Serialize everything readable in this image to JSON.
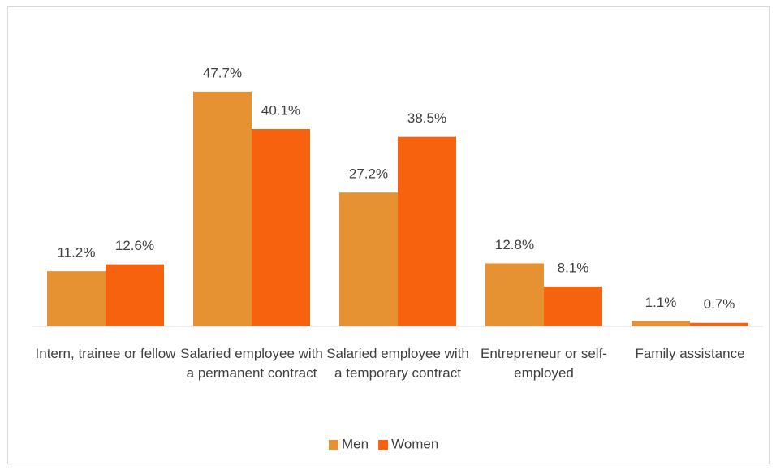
{
  "chart_data": {
    "type": "bar",
    "categories": [
      "Intern, trainee or fellow",
      "Salaried employee with a permanent contract",
      "Salaried employee with a temporary contract",
      "Entrepreneur or self-employed",
      "Family assistance"
    ],
    "series": [
      {
        "name": "Men",
        "color": "#e69232",
        "values": [
          11.2,
          47.7,
          27.2,
          12.8,
          1.1
        ],
        "value_labels": [
          "11.2%",
          "47.7%",
          "27.2%",
          "12.8%",
          "1.1%"
        ]
      },
      {
        "name": "Women",
        "color": "#f7620f",
        "values": [
          12.6,
          40.1,
          38.5,
          8.1,
          0.7
        ],
        "value_labels": [
          "12.6%",
          "40.1%",
          "38.5%",
          "8.1%",
          "0.7%"
        ]
      }
    ],
    "ylim": [
      0,
      50
    ],
    "legend": "bottom"
  }
}
